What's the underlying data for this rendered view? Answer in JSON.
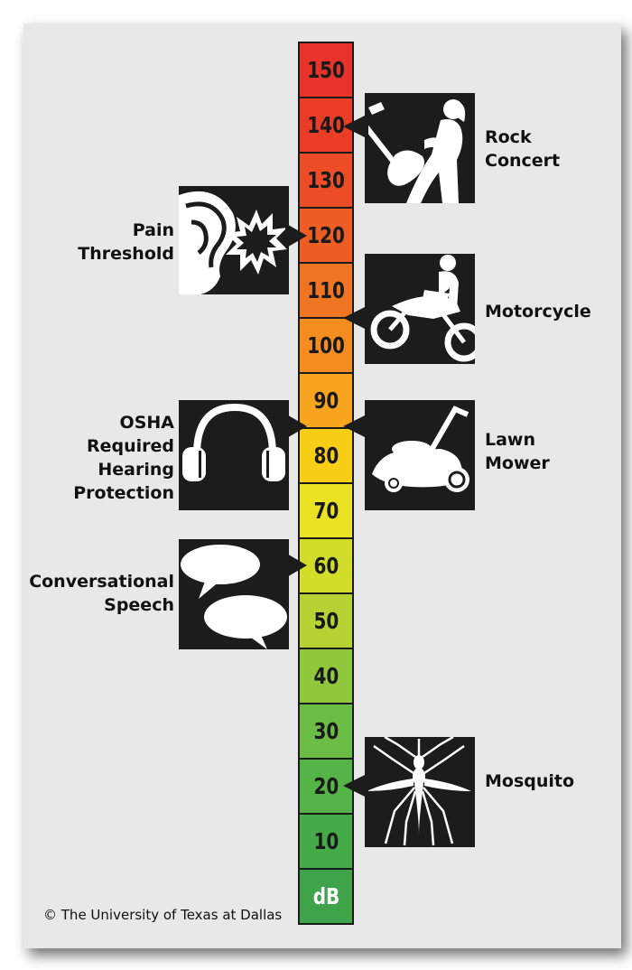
{
  "scale": {
    "segments": [
      {
        "label": "150",
        "color": "#e8332a"
      },
      {
        "label": "140",
        "color": "#ea3d28"
      },
      {
        "label": "130",
        "color": "#ec4d26"
      },
      {
        "label": "120",
        "color": "#ee5d24"
      },
      {
        "label": "110",
        "color": "#f07522"
      },
      {
        "label": "100",
        "color": "#f48d20"
      },
      {
        "label": "90",
        "color": "#f7a51e"
      },
      {
        "label": "80",
        "color": "#f8cd16"
      },
      {
        "label": "70",
        "color": "#e9e323"
      },
      {
        "label": "60",
        "color": "#d2dd2a"
      },
      {
        "label": "50",
        "color": "#b6d334"
      },
      {
        "label": "40",
        "color": "#8fc83d"
      },
      {
        "label": "30",
        "color": "#6cbd45"
      },
      {
        "label": "20",
        "color": "#55b448"
      },
      {
        "label": "10",
        "color": "#44ab48"
      },
      {
        "label": "dB",
        "color": "#3ea349"
      }
    ]
  },
  "markers": [
    {
      "name": "rock-concert",
      "label_lines": [
        "Rock",
        "Concert"
      ],
      "db": 140,
      "side": "right",
      "icon": "guitarist-icon"
    },
    {
      "name": "pain-threshold",
      "label_lines": [
        "Pain",
        "Threshold"
      ],
      "db": 120,
      "side": "left",
      "icon": "ear-pain-icon"
    },
    {
      "name": "motorcycle",
      "label_lines": [
        "Motorcycle"
      ],
      "db": 105,
      "side": "right",
      "icon": "motorcycle-icon"
    },
    {
      "name": "osha-protection",
      "label_lines": [
        "OSHA",
        "Required",
        "Hearing",
        "Protection"
      ],
      "db": 85,
      "side": "left",
      "icon": "earmuffs-icon"
    },
    {
      "name": "lawn-mower",
      "label_lines": [
        "Lawn",
        "Mower"
      ],
      "db": 85,
      "side": "right",
      "icon": "lawn-mower-icon"
    },
    {
      "name": "conversational-speech",
      "label_lines": [
        "Conversational",
        "Speech"
      ],
      "db": 60,
      "side": "left",
      "icon": "speech-bubbles-icon"
    },
    {
      "name": "mosquito",
      "label_lines": [
        "Mosquito"
      ],
      "db": 20,
      "side": "right",
      "icon": "mosquito-icon"
    }
  ],
  "footer": {
    "copyright": "© The University of Texas at Dallas"
  }
}
